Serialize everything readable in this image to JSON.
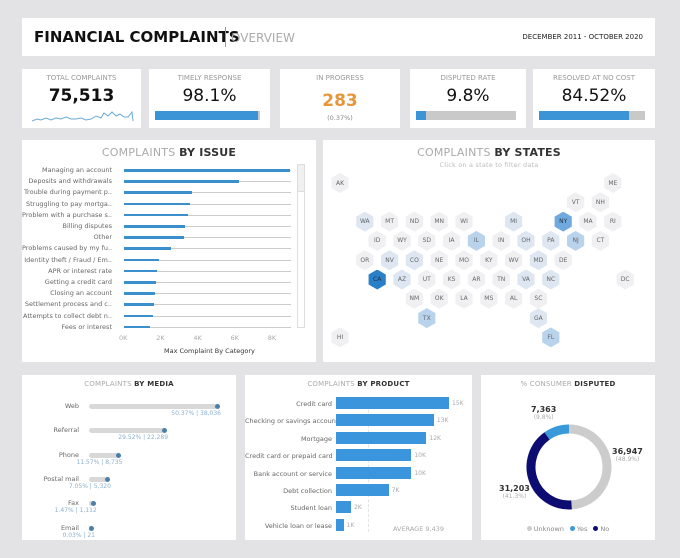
{
  "header": {
    "title": "FINANCIAL COMPLAINTS",
    "subtitle": "OVERVIEW",
    "date_range": "DECEMBER 2011 - OCTOBER 2020"
  },
  "kpis": {
    "total": {
      "label": "TOTAL COMPLAINTS",
      "value": "75,513"
    },
    "timely": {
      "label": "TIMELY RESPONSE",
      "value": "98.1%",
      "fill": 98.1
    },
    "progress": {
      "label": "IN PROGRESS",
      "value": "283",
      "sub": "(0.37%)",
      "color": "#e8963a"
    },
    "disputed": {
      "label": "DISPUTED RATE",
      "value": "9.8%",
      "fill": 9.8
    },
    "resolved": {
      "label": "RESOLVED AT NO COST",
      "value": "84.52%",
      "fill": 84.52
    }
  },
  "issue": {
    "title_light": "COMPLAINTS ",
    "title_bold": "BY ISSUE",
    "xlabel": "Max Complaint By Category",
    "ticks": [
      "0K",
      "2K",
      "4K",
      "6K",
      "8K"
    ],
    "items": [
      {
        "label": "Managing an account",
        "value": 8900
      },
      {
        "label": "Deposits and withdrawals",
        "value": 6200
      },
      {
        "label": "Trouble during payment p..",
        "value": 3650
      },
      {
        "label": "Struggling to pay mortga..",
        "value": 3550
      },
      {
        "label": "Problem with a purchase s..",
        "value": 3450
      },
      {
        "label": "Billing disputes",
        "value": 3300
      },
      {
        "label": "Other",
        "value": 3200
      },
      {
        "label": "Problems caused by my fu..",
        "value": 2500
      },
      {
        "label": "Identity theft / Fraud / Em..",
        "value": 1900
      },
      {
        "label": "APR or interest rate",
        "value": 1800
      },
      {
        "label": "Getting a credit card",
        "value": 1700
      },
      {
        "label": "Closing an account",
        "value": 1650
      },
      {
        "label": "Settlement process and c..",
        "value": 1600
      },
      {
        "label": "Attempts to collect debt n..",
        "value": 1550
      },
      {
        "label": "Fees or interest",
        "value": 1400
      }
    ]
  },
  "states": {
    "title_light": "COMPLAINTS ",
    "title_bold": "BY STATES",
    "hint": "Click on a state to filter data",
    "levels": {
      "AK": 0,
      "ME": 0,
      "VT": 0,
      "NH": 0,
      "WA": 1,
      "MT": 0,
      "ND": 0,
      "MN": 0,
      "WI": 0,
      "MI": 1,
      "NY": 3,
      "MA": 0,
      "RI": 0,
      "ID": 0,
      "WY": 0,
      "SD": 0,
      "IA": 0,
      "IL": 2,
      "IN": 0,
      "OH": 1,
      "PA": 1,
      "NJ": 2,
      "CT": 0,
      "OR": 0,
      "NV": 1,
      "CO": 1,
      "NE": 0,
      "MO": 0,
      "KY": 0,
      "WV": 0,
      "MD": 1,
      "DE": 0,
      "CA": 4,
      "AZ": 1,
      "UT": 0,
      "KS": 0,
      "AR": 0,
      "TN": 0,
      "VA": 1,
      "NC": 1,
      "DC": 0,
      "NM": 0,
      "OK": 0,
      "LA": 0,
      "MS": 0,
      "AL": 0,
      "SC": 0,
      "TX": 2,
      "GA": 1,
      "HI": 0,
      "FL": 2
    },
    "colors": [
      "#f0f0f3",
      "#dde6f1",
      "#b9d3ec",
      "#6fa9de",
      "#2a7fc9"
    ]
  },
  "media": {
    "title_light": "COMPLAINTS ",
    "title_bold": "BY MEDIA",
    "items": [
      {
        "label": "Web",
        "pct": 50.37,
        "text": "50.37% | 38,036"
      },
      {
        "label": "Referral",
        "pct": 29.52,
        "text": "29.52% | 22,289"
      },
      {
        "label": "Phone",
        "pct": 11.57,
        "text": "11.57% | 8,735"
      },
      {
        "label": "Postal mail",
        "pct": 7.05,
        "text": "7.05% | 5,320"
      },
      {
        "label": "Fax",
        "pct": 1.47,
        "text": "1.47% | 1,112"
      },
      {
        "label": "Email",
        "pct": 0.03,
        "text": "0.03% | 21"
      }
    ]
  },
  "product": {
    "title_light": "COMPLAINTS ",
    "title_bold": "BY PRODUCT",
    "average": "AVERAGE 9,439",
    "items": [
      {
        "label": "Credit card",
        "value": 15,
        "text": "15K"
      },
      {
        "label": "Checking or savings account",
        "value": 13,
        "text": "13K"
      },
      {
        "label": "Mortgage",
        "value": 12,
        "text": "12K"
      },
      {
        "label": "Credit card or prepaid card",
        "value": 10,
        "text": "10K"
      },
      {
        "label": "Bank account or service",
        "value": 10,
        "text": "10K"
      },
      {
        "label": "Debt collection",
        "value": 7,
        "text": "7K"
      },
      {
        "label": "Student loan",
        "value": 2,
        "text": "2K"
      },
      {
        "label": "Vehicle loan or lease",
        "value": 1,
        "text": "1K"
      }
    ]
  },
  "disputed": {
    "title_light": "% CONSUMER ",
    "title_bold": "DISPUTED",
    "segments": [
      {
        "name": "Unknown",
        "value": 36947,
        "count": "36,947",
        "pct": "(48.9%)",
        "color": "#cccccc"
      },
      {
        "name": "No",
        "value": 31203,
        "count": "31,203",
        "pct": "(41.3%)",
        "color": "#0c0c72"
      },
      {
        "name": "Yes",
        "value": 7363,
        "count": "7,363",
        "pct": "(9.8%)",
        "color": "#3a9ad9"
      }
    ]
  }
}
